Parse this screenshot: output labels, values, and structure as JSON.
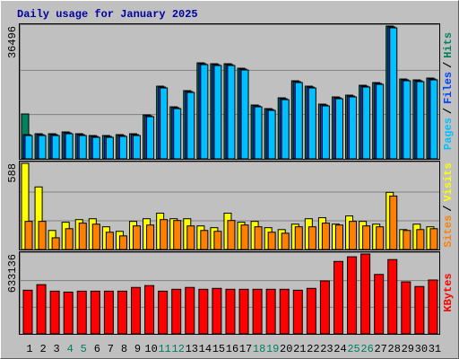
{
  "title": "Daily usage for January 2025",
  "legend_separator": "/",
  "categories": [
    "1",
    "2",
    "3",
    "4",
    "5",
    "6",
    "7",
    "8",
    "9",
    "10",
    "11",
    "12",
    "13",
    "14",
    "15",
    "16",
    "17",
    "18",
    "19",
    "20",
    "21",
    "22",
    "23",
    "24",
    "25",
    "26",
    "27",
    "28",
    "29",
    "30",
    "31"
  ],
  "category_colors": [
    "#000000",
    "#000000",
    "#000000",
    "#00805c",
    "#00805c",
    "#000000",
    "#000000",
    "#000000",
    "#000000",
    "#000000",
    "#00805c",
    "#00805c",
    "#000000",
    "#000000",
    "#000000",
    "#000000",
    "#000000",
    "#00805c",
    "#00805c",
    "#000000",
    "#000000",
    "#000000",
    "#000000",
    "#000000",
    "#00805c",
    "#00805c",
    "#000000",
    "#000000",
    "#000000",
    "#000000",
    "#000000"
  ],
  "chart_data": [
    {
      "type": "bar",
      "ylim": [
        0,
        36496
      ],
      "yticks": [
        36496
      ],
      "grid": true,
      "series": [
        {
          "name": "Hits",
          "color": "#00805c",
          "values": [
            12330,
            6905,
            6905,
            7398,
            6905,
            6411,
            6411,
            6658,
            6905,
            12083,
            19974,
            14303,
            18741,
            26386,
            26139,
            26139,
            24906,
            14796,
            13809,
            16769,
            21454,
            19974,
            15042,
            17015,
            17508,
            20221,
            20961,
            36496,
            21947,
            21700,
            22194
          ]
        },
        {
          "name": "Files",
          "color": "#0040ff",
          "values": [
            6658,
            6658,
            6658,
            7151,
            6658,
            6165,
            6165,
            6411,
            6658,
            11837,
            19728,
            14056,
            18494,
            26139,
            25893,
            25893,
            24660,
            14549,
            13563,
            16522,
            21207,
            19728,
            14796,
            16769,
            17262,
            19974,
            20714,
            36250,
            21700,
            21454,
            21947
          ]
        },
        {
          "name": "Pages",
          "color": "#00c0ff",
          "values": [
            6412,
            6412,
            6412,
            6905,
            6412,
            5918,
            5918,
            6165,
            6412,
            11590,
            19481,
            13810,
            18248,
            25893,
            25646,
            25646,
            24413,
            14303,
            13316,
            16276,
            20961,
            19481,
            14549,
            16522,
            17015,
            19728,
            20468,
            36003,
            21454,
            21207,
            21701
          ]
        }
      ]
    },
    {
      "type": "bar",
      "ylim": [
        0,
        588
      ],
      "yticks": [
        588
      ],
      "grid": true,
      "series": [
        {
          "name": "Visits",
          "color": "#ffff00",
          "values": [
            588,
            427,
            130,
            186,
            204,
            210,
            155,
            124,
            192,
            210,
            248,
            210,
            210,
            161,
            149,
            248,
            186,
            192,
            149,
            136,
            173,
            210,
            217,
            173,
            229,
            192,
            173,
            390,
            136,
            173,
            155
          ]
        },
        {
          "name": "Sites",
          "color": "#ff8000",
          "values": [
            192,
            192,
            80,
            142,
            180,
            173,
            118,
            93,
            161,
            167,
            204,
            198,
            161,
            130,
            124,
            198,
            167,
            155,
            118,
            111,
            155,
            155,
            180,
            167,
            192,
            161,
            155,
            365,
            130,
            136,
            142
          ]
        }
      ]
    },
    {
      "type": "bar",
      "ylim": [
        0,
        633136
      ],
      "yticks": [
        633136
      ],
      "grid": true,
      "series": [
        {
          "name": "KBytes",
          "color": "#ff0000",
          "values": [
            346014,
            390186,
            338652,
            331290,
            338652,
            338652,
            338652,
            338652,
            368100,
            382824,
            338652,
            353376,
            368100,
            353376,
            360738,
            353376,
            353376,
            353376,
            353376,
            353376,
            346014,
            360738,
            419634,
            574236,
            611046,
            633136,
            471168,
            588960,
            412272,
            375462,
            427000
          ]
        }
      ]
    }
  ]
}
